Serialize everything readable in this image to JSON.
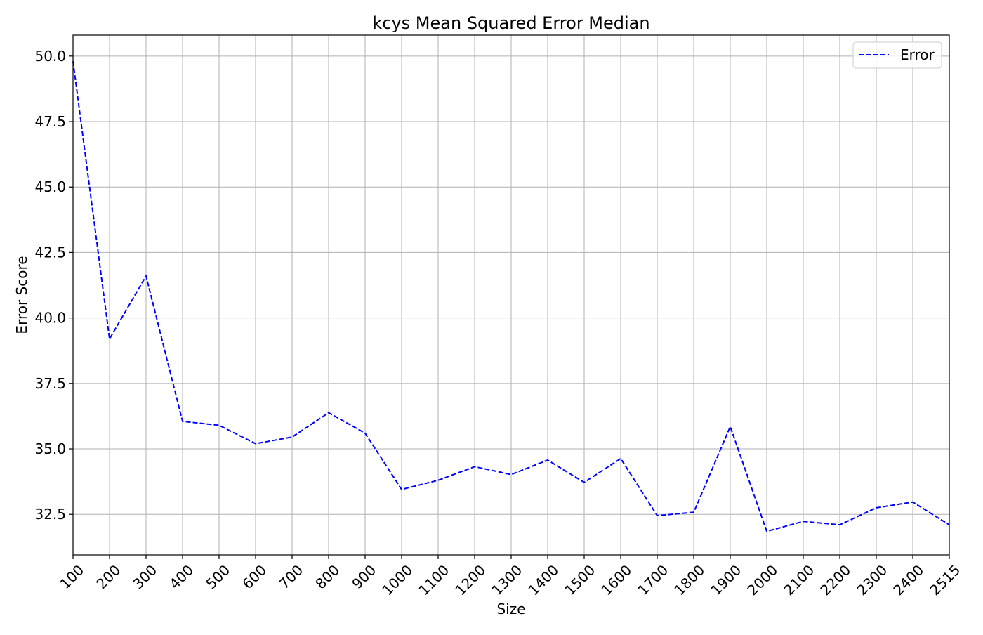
{
  "chart_data": {
    "type": "line",
    "title": "kcys Mean Squared Error Median",
    "xlabel": "Size",
    "ylabel": "Error Score",
    "x_tick_labels": [
      "100",
      "200",
      "300",
      "400",
      "500",
      "600",
      "700",
      "800",
      "900",
      "1000",
      "1100",
      "1200",
      "1300",
      "1400",
      "1500",
      "1600",
      "1700",
      "1800",
      "1900",
      "2000",
      "2100",
      "2200",
      "2300",
      "2400",
      "2515"
    ],
    "y_ticks": [
      32.5,
      35.0,
      37.5,
      40.0,
      42.5,
      45.0,
      47.5,
      50.0
    ],
    "y_tick_labels": [
      "32.5",
      "35.0",
      "37.5",
      "40.0",
      "42.5",
      "45.0",
      "47.5",
      "50.0"
    ],
    "ylim": [
      30.95,
      50.8
    ],
    "grid": true,
    "legend_position": "top-right",
    "series": [
      {
        "name": "Error",
        "color": "#0000ff",
        "line_style": "dashed",
        "values": [
          49.8,
          39.2,
          41.6,
          36.05,
          35.9,
          35.2,
          35.45,
          36.38,
          35.6,
          33.45,
          33.8,
          34.32,
          34.02,
          34.57,
          33.72,
          34.63,
          32.45,
          32.58,
          35.85,
          31.85,
          32.23,
          32.1,
          32.75,
          32.97,
          32.1
        ]
      }
    ]
  }
}
